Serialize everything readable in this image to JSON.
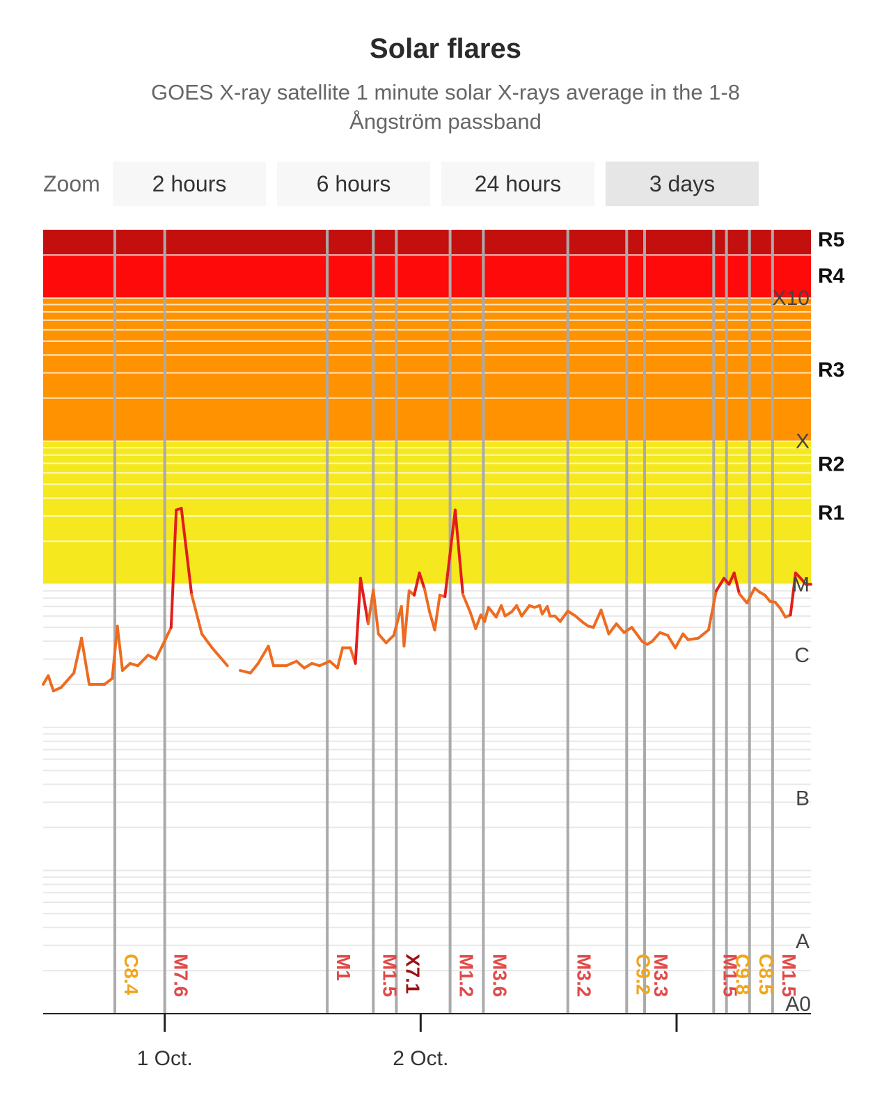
{
  "title": "Solar flares",
  "subtitle": "GOES X-ray satellite 1 minute solar X-rays average in the 1-8 Ångström passband",
  "zoom": {
    "label": "Zoom",
    "buttons": [
      "2 hours",
      "6 hours",
      "24 hours",
      "3 days"
    ],
    "active": "3 days"
  },
  "colors": {
    "r5": "#c40f0f",
    "r4": "#ff0a0a",
    "r3": "#ff9200",
    "r2r1": "#f6e81e",
    "background_bands": "#ffffff",
    "flare_line_low": "#ee6b1f",
    "flare_line_high": "#e11d1d",
    "flare_line_x": "#8a0f0f",
    "marker_line": "#aaaaaa",
    "label_c": "#f0a51c",
    "label_m": "#e04a4a",
    "label_x": "#9b1212"
  },
  "chart_data": {
    "type": "line",
    "y_scale": "log",
    "y_unit": "W/m²",
    "ylim": [
      1e-08,
      0.003
    ],
    "class_labels": [
      {
        "label": "A0",
        "value": 1e-08
      },
      {
        "label": "A",
        "value": 1e-08
      },
      {
        "label": "B",
        "value": 1e-07
      },
      {
        "label": "C",
        "value": 1e-06
      },
      {
        "label": "M",
        "value": 1e-05
      },
      {
        "label": "X",
        "value": 0.0001
      },
      {
        "label": "X10",
        "value": 0.001
      }
    ],
    "radio_blackout_labels": [
      {
        "label": "R1",
        "value": 1e-05
      },
      {
        "label": "R2",
        "value": 5e-05
      },
      {
        "label": "R3",
        "value": 0.0001
      },
      {
        "label": "R4",
        "value": 0.001
      },
      {
        "label": "R5",
        "value": 0.002
      }
    ],
    "x_ticks": [
      {
        "label": "1 Oct.",
        "value": 0.475
      },
      {
        "label": "2 Oct.",
        "value": 1.475
      },
      {
        "label": ""
      }
    ],
    "xlim": [
      0,
      3
    ],
    "series": [
      {
        "name": "",
        "points": [
          [
            0.0,
            2e-06
          ],
          [
            0.02,
            2.3e-06
          ],
          [
            0.04,
            1.8e-06
          ],
          [
            0.07,
            1.9e-06
          ],
          [
            0.12,
            2.4e-06
          ],
          [
            0.15,
            4.2e-06
          ],
          [
            0.18,
            2e-06
          ],
          [
            0.24,
            2e-06
          ],
          [
            0.27,
            2.2e-06
          ],
          [
            0.29,
            5.1e-06
          ],
          [
            0.31,
            2.5e-06
          ],
          [
            0.34,
            2.8e-06
          ],
          [
            0.37,
            2.7e-06
          ],
          [
            0.41,
            3.2e-06
          ],
          [
            0.44,
            3e-06
          ],
          [
            0.48,
            4.2e-06
          ],
          [
            0.5,
            5e-06
          ],
          [
            0.52,
            3.3e-05
          ],
          [
            0.54,
            3.4e-05
          ],
          [
            0.58,
            8.5e-06
          ],
          [
            0.62,
            4.5e-06
          ],
          [
            0.66,
            3.6e-06
          ],
          [
            0.72,
            2.7e-06
          ],
          null,
          [
            0.77,
            2.5e-06
          ],
          [
            0.81,
            2.4e-06
          ],
          [
            0.84,
            2.8e-06
          ],
          [
            0.88,
            3.7e-06
          ],
          [
            0.9,
            2.7e-06
          ],
          [
            0.95,
            2.7e-06
          ],
          [
            0.99,
            2.9e-06
          ],
          [
            1.02,
            2.6e-06
          ],
          [
            1.05,
            2.8e-06
          ],
          [
            1.08,
            2.7e-06
          ],
          [
            1.12,
            2.9e-06
          ],
          [
            1.15,
            2.6e-06
          ],
          [
            1.17,
            3.6e-06
          ],
          [
            1.2,
            3.6e-06
          ],
          [
            1.22,
            2.8e-06
          ],
          [
            1.24,
            1.1e-05
          ],
          [
            1.27,
            5.3e-06
          ],
          [
            1.29,
            9.1e-06
          ],
          [
            1.31,
            4.5e-06
          ],
          [
            1.34,
            3.9e-06
          ],
          [
            1.37,
            4.4e-06
          ],
          [
            1.4,
            7e-06
          ],
          [
            1.41,
            3.7e-06
          ],
          [
            1.43,
            9e-06
          ],
          [
            1.45,
            8.4e-06
          ],
          [
            1.47,
            1.2e-05
          ],
          [
            1.49,
            9.3e-06
          ],
          [
            1.51,
            6.4e-06
          ],
          [
            1.53,
            4.8e-06
          ],
          [
            1.55,
            8.4e-06
          ],
          [
            1.57,
            8.2e-06
          ],
          [
            1.61,
            3.3e-05
          ],
          [
            1.64,
            8.5e-06
          ],
          [
            1.67,
            6.3e-06
          ],
          [
            1.69,
            4.9e-06
          ],
          [
            1.71,
            6.1e-06
          ],
          [
            1.725,
            5.5e-06
          ],
          [
            1.74,
            6.9e-06
          ],
          [
            1.77,
            5.9e-06
          ],
          [
            1.79,
            7.1e-06
          ],
          [
            1.805,
            6e-06
          ],
          [
            1.83,
            6.4e-06
          ],
          [
            1.85,
            7.1e-06
          ],
          [
            1.87,
            6e-06
          ],
          [
            1.9,
            7.1e-06
          ],
          [
            1.92,
            6.9e-06
          ],
          [
            1.94,
            7.1e-06
          ],
          [
            1.95,
            6.2e-06
          ],
          [
            1.97,
            7e-06
          ],
          [
            1.98,
            6e-06
          ],
          [
            2.0,
            6e-06
          ],
          [
            2.02,
            5.5e-06
          ],
          [
            2.05,
            6.5e-06
          ],
          [
            2.08,
            6e-06
          ],
          [
            2.11,
            5.4e-06
          ],
          [
            2.13,
            5.1e-06
          ],
          [
            2.15,
            5e-06
          ],
          [
            2.18,
            6.6e-06
          ],
          [
            2.21,
            4.5e-06
          ],
          [
            2.24,
            5.3e-06
          ],
          [
            2.27,
            4.6e-06
          ],
          [
            2.3,
            5e-06
          ],
          [
            2.34,
            4e-06
          ],
          [
            2.36,
            3.8e-06
          ],
          [
            2.38,
            4e-06
          ],
          [
            2.41,
            4.6e-06
          ],
          [
            2.44,
            4.4e-06
          ],
          [
            2.47,
            3.6e-06
          ],
          [
            2.5,
            4.5e-06
          ],
          [
            2.52,
            4.1e-06
          ],
          [
            2.56,
            4.2e-06
          ],
          [
            2.6,
            4.8e-06
          ],
          [
            2.63,
            9e-06
          ],
          [
            2.66,
            1.1e-05
          ],
          [
            2.68,
            1e-05
          ],
          [
            2.7,
            1.2e-05
          ],
          [
            2.72,
            8.6e-06
          ],
          [
            2.75,
            7.4e-06
          ],
          [
            2.78,
            9.4e-06
          ],
          [
            2.8,
            8.8e-06
          ],
          [
            2.82,
            8.4e-06
          ],
          [
            2.84,
            7.6e-06
          ],
          [
            2.86,
            7.5e-06
          ],
          [
            2.88,
            6.8e-06
          ],
          [
            2.9,
            5.9e-06
          ],
          [
            2.92,
            6.1e-06
          ],
          [
            2.94,
            1.2e-05
          ],
          [
            2.96,
            1.1e-05
          ],
          [
            2.98,
            1e-05
          ],
          [
            3.0,
            1e-05
          ]
        ]
      }
    ],
    "flare_markers": [
      {
        "label": "C8.4",
        "x": 0.28,
        "class": "C"
      },
      {
        "label": "M7.6",
        "x": 0.475,
        "class": "M"
      },
      {
        "label": "M1",
        "x": 1.11,
        "class": "M"
      },
      {
        "label": "M1.5",
        "x": 1.29,
        "class": "M"
      },
      {
        "label": "X7.1",
        "x": 1.38,
        "class": "X"
      },
      {
        "label": "M1.2",
        "x": 1.59,
        "class": "M"
      },
      {
        "label": "M3.6",
        "x": 1.72,
        "class": "M"
      },
      {
        "label": "M3.2",
        "x": 2.05,
        "class": "M"
      },
      {
        "label": "C9.2",
        "x": 2.28,
        "class": "C"
      },
      {
        "label": "M3.3",
        "x": 2.35,
        "class": "M"
      },
      {
        "label": "M1.5",
        "x": 2.62,
        "class": "M"
      },
      {
        "label": "C9.8",
        "x": 2.67,
        "class": "C"
      },
      {
        "label": "C8.5",
        "x": 2.76,
        "class": "C"
      },
      {
        "label": "M1.5",
        "x": 2.85,
        "class": "M"
      }
    ],
    "title": "Solar flares",
    "grid": true,
    "legend": "none"
  }
}
